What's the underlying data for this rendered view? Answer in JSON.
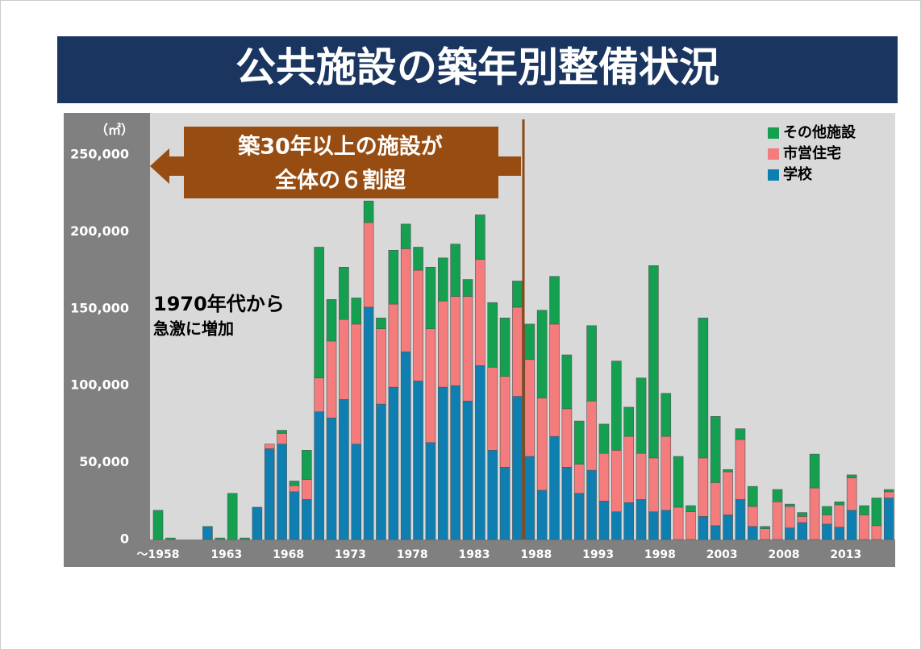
{
  "chart_data": {
    "type": "bar",
    "stacked": true,
    "title": "公共施設の築年別整備状況",
    "unit_label": "（㎡）",
    "categories": [
      "～1958",
      null,
      null,
      null,
      null,
      "1963",
      null,
      null,
      null,
      null,
      "1968",
      null,
      null,
      null,
      null,
      "1973",
      null,
      null,
      null,
      null,
      "1978",
      null,
      null,
      null,
      null,
      "1983",
      null,
      null,
      null,
      null,
      "1988",
      null,
      null,
      null,
      null,
      "1993",
      null,
      null,
      null,
      null,
      "1998",
      null,
      null,
      null,
      null,
      "2003",
      null,
      null,
      null,
      null,
      "2008",
      null,
      null,
      null,
      null,
      "2013",
      null,
      null,
      null,
      null
    ],
    "series": [
      {
        "name": "学校",
        "color": "#0e7fb0",
        "values": [
          0,
          0,
          0,
          0,
          8500,
          0,
          0,
          0,
          21000,
          59000,
          62000,
          31000,
          26000,
          83000,
          79000,
          91000,
          62000,
          151000,
          88000,
          99000,
          122000,
          103000,
          63000,
          99000,
          100000,
          90000,
          113000,
          58000,
          47000,
          93000,
          54000,
          32000,
          67000,
          47000,
          30000,
          45000,
          25000,
          18000,
          24000,
          26000,
          18000,
          19000,
          0,
          0,
          15000,
          9000,
          16000,
          26000,
          8500,
          0,
          0,
          7500,
          11000,
          0,
          10000,
          8000,
          19000,
          0,
          0,
          27000
        ]
      },
      {
        "name": "市営住宅",
        "color": "#f47c7c",
        "values": [
          0,
          0,
          0,
          0,
          0,
          0,
          0,
          0,
          0,
          3000,
          7000,
          4000,
          13000,
          22000,
          50000,
          52000,
          78000,
          55000,
          49000,
          54000,
          67000,
          72000,
          74000,
          56000,
          58000,
          68000,
          69000,
          54000,
          59000,
          58000,
          63000,
          60000,
          73000,
          38000,
          19000,
          45000,
          31000,
          40000,
          43000,
          30000,
          35000,
          48000,
          21000,
          18000,
          38000,
          28000,
          28000,
          39000,
          13000,
          7000,
          24500,
          14000,
          4000,
          33500,
          6000,
          14500,
          21000,
          16000,
          9000,
          4000
        ]
      },
      {
        "name": "その他施設",
        "color": "#14a050",
        "values": [
          19000,
          1000,
          0,
          0,
          0,
          1000,
          30000,
          1000,
          0,
          0,
          2000,
          3000,
          19000,
          85000,
          27000,
          34000,
          17000,
          14000,
          7000,
          35000,
          16000,
          15000,
          40000,
          28000,
          34000,
          11000,
          29000,
          42000,
          38000,
          17000,
          23000,
          57000,
          31000,
          35000,
          28000,
          49000,
          19000,
          58000,
          19000,
          49000,
          125000,
          28000,
          33000,
          4000,
          91000,
          43000,
          1500,
          7000,
          13000,
          1500,
          8000,
          1500,
          2500,
          22000,
          5500,
          2000,
          2000,
          6000,
          18000,
          1500
        ]
      }
    ],
    "ylim": [
      0,
      250000
    ],
    "yticks": [
      0,
      {
        "value": 50000,
        "label": "50,000"
      },
      {
        "value": 100000,
        "label": "100,000"
      },
      {
        "value": 150000,
        "label": "150,000"
      },
      {
        "value": 200000,
        "label": "200,000"
      },
      {
        "value": 250000,
        "label": "250,000"
      }
    ],
    "callout": [
      "築30年以上の施設が",
      "全体の６割超"
    ],
    "annotation": [
      "1970年代から",
      "急激に増加"
    ]
  }
}
